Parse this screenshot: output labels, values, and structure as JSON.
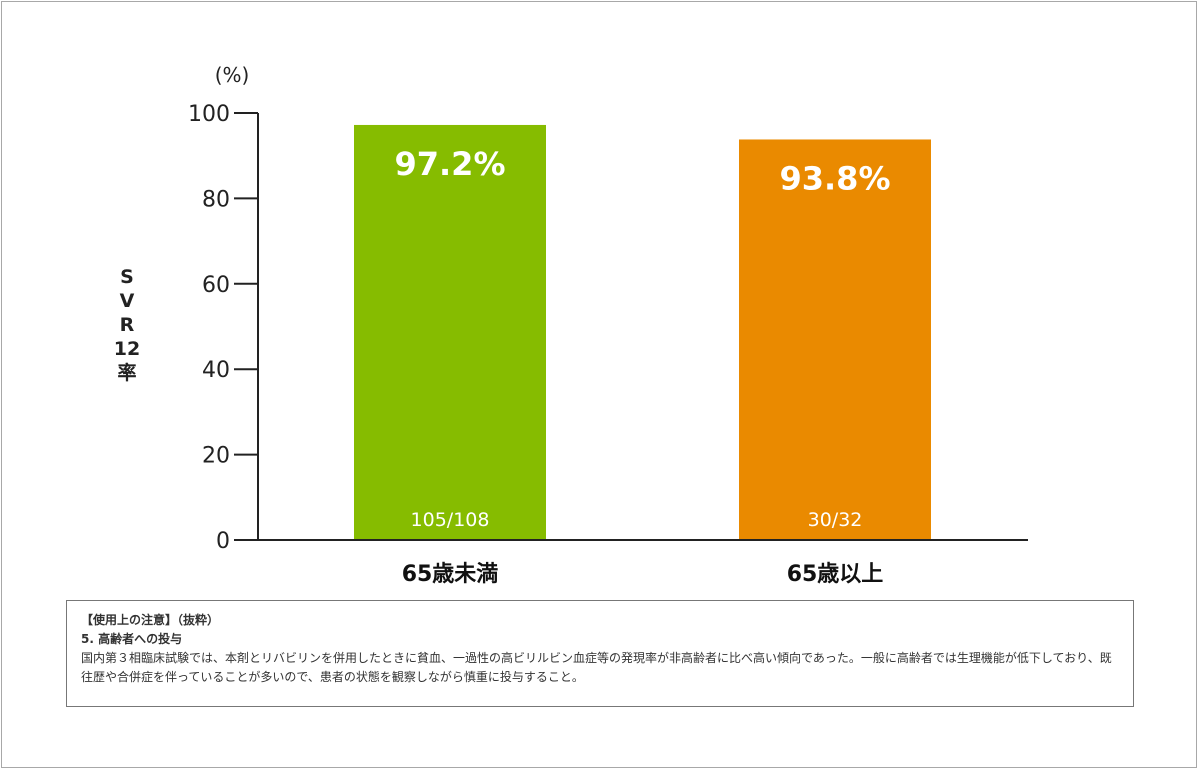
{
  "chart_data": {
    "type": "bar",
    "unit": "(%)",
    "ylabel": "SVR12率",
    "ylim": [
      0,
      100
    ],
    "yticks": [
      0,
      20,
      40,
      60,
      80,
      100
    ],
    "categories": [
      "65歳未満",
      "65歳以上"
    ],
    "values": [
      97.2,
      93.8
    ],
    "value_labels": [
      "97.2%",
      "93.8%"
    ],
    "count_labels": [
      "105/108",
      "30/32"
    ],
    "colors": [
      "#86bc00",
      "#ea8a00"
    ]
  },
  "notes": {
    "heading": "【使用上の注意】（抜粋）",
    "subheading": "5. 高齢者への投与",
    "body": "国内第３相臨床試験では、本剤とリバビリンを併用したときに貧血、一過性の高ビリルビン血症等の発現率が非高齢者に比べ高い傾向であった。一般に高齢者では生理機能が低下しており、既往歴や合併症を伴っていることが多いので、患者の状態を観察しながら慎重に投与すること。"
  }
}
